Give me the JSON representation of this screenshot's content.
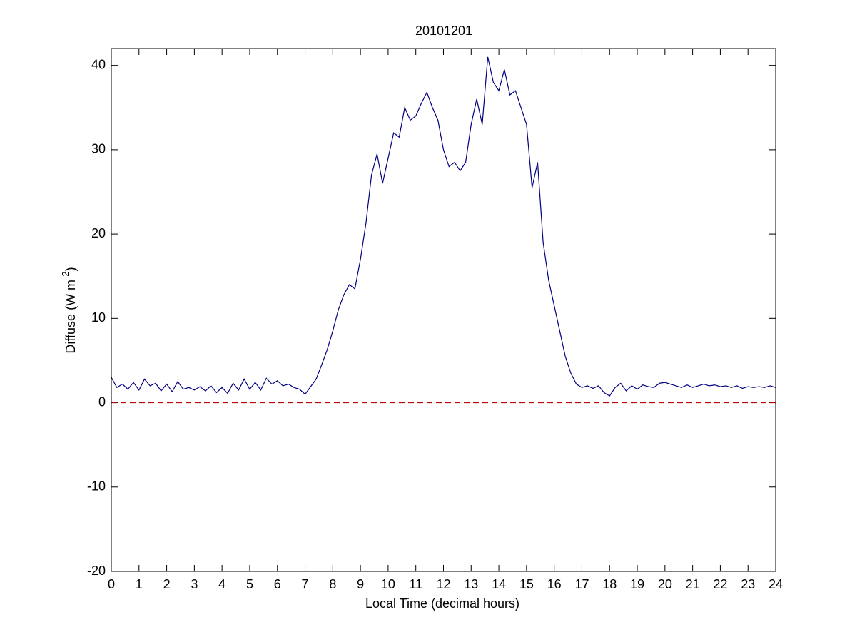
{
  "chart_data": {
    "type": "line",
    "title": "20101201",
    "xlabel": "Local Time (decimal hours)",
    "ylabel": {
      "text": "Diffuse (W m",
      "superscript": "-2",
      "suffix": ")"
    },
    "xlim": [
      0,
      24
    ],
    "xticks": [
      0,
      1,
      2,
      3,
      4,
      5,
      6,
      7,
      8,
      9,
      10,
      11,
      12,
      13,
      14,
      15,
      16,
      17,
      18,
      19,
      20,
      21,
      22,
      23,
      24
    ],
    "ylim": [
      -20,
      42
    ],
    "yticks": [
      -20,
      -10,
      0,
      10,
      20,
      30,
      40
    ],
    "reference_line": {
      "value": 0,
      "color": "#c00000",
      "dashed": true
    },
    "series": [
      {
        "color": "#000080",
        "x": [
          0,
          0.2,
          0.4,
          0.6,
          0.8,
          1,
          1.2,
          1.4,
          1.6,
          1.8,
          2,
          2.2,
          2.4,
          2.6,
          2.8,
          3,
          3.2,
          3.4,
          3.6,
          3.8,
          4,
          4.2,
          4.4,
          4.6,
          4.8,
          5,
          5.2,
          5.4,
          5.6,
          5.8,
          6,
          6.2,
          6.4,
          6.6,
          6.8,
          7,
          7.2,
          7.4,
          7.6,
          7.8,
          8,
          8.2,
          8.4,
          8.6,
          8.8,
          9,
          9.2,
          9.4,
          9.6,
          9.8,
          10,
          10.2,
          10.4,
          10.6,
          10.8,
          11,
          11.2,
          11.4,
          11.6,
          11.8,
          12,
          12.2,
          12.4,
          12.6,
          12.8,
          13,
          13.2,
          13.4,
          13.6,
          13.8,
          14,
          14.2,
          14.4,
          14.6,
          14.8,
          15,
          15.2,
          15.4,
          15.6,
          15.8,
          16,
          16.2,
          16.4,
          16.6,
          16.8,
          17,
          17.2,
          17.4,
          17.6,
          17.8,
          18,
          18.2,
          18.4,
          18.6,
          18.8,
          19,
          19.2,
          19.4,
          19.6,
          19.8,
          20,
          20.2,
          20.4,
          20.6,
          20.8,
          21,
          21.2,
          21.4,
          21.6,
          21.8,
          22,
          22.2,
          22.4,
          22.6,
          22.8,
          23,
          23.2,
          23.4,
          23.6,
          23.8,
          24
        ],
        "values": [
          3.0,
          1.8,
          2.2,
          1.6,
          2.4,
          1.5,
          2.8,
          2.0,
          2.3,
          1.4,
          2.2,
          1.3,
          2.5,
          1.6,
          1.8,
          1.5,
          1.9,
          1.4,
          2.0,
          1.2,
          1.8,
          1.1,
          2.3,
          1.5,
          2.8,
          1.6,
          2.4,
          1.5,
          2.9,
          2.2,
          2.6,
          2.0,
          2.2,
          1.8,
          1.6,
          1.0,
          1.9,
          2.8,
          4.5,
          6.3,
          8.5,
          11.0,
          12.8,
          14.0,
          13.5,
          17.0,
          21.3,
          27.0,
          29.5,
          26.0,
          29.0,
          32.0,
          31.5,
          35.0,
          33.5,
          34.0,
          35.5,
          36.8,
          35.0,
          33.5,
          30.0,
          28.0,
          28.5,
          27.5,
          28.5,
          33.0,
          36.0,
          33.0,
          41.0,
          38.0,
          37.0,
          39.5,
          36.5,
          37.0,
          35.0,
          33.0,
          25.5,
          28.5,
          19.0,
          14.5,
          11.5,
          8.5,
          5.5,
          3.5,
          2.2,
          1.8,
          2.0,
          1.7,
          2.0,
          1.2,
          0.8,
          1.8,
          2.3,
          1.4,
          2.0,
          1.6,
          2.1,
          1.9,
          1.8,
          2.3,
          2.4,
          2.2,
          2.0,
          1.8,
          2.1,
          1.8,
          2.0,
          2.2,
          2.0,
          2.1,
          1.9,
          2.0,
          1.8,
          2.0,
          1.7,
          1.9,
          1.8,
          1.9,
          1.8,
          2.0,
          1.8
        ]
      }
    ]
  }
}
